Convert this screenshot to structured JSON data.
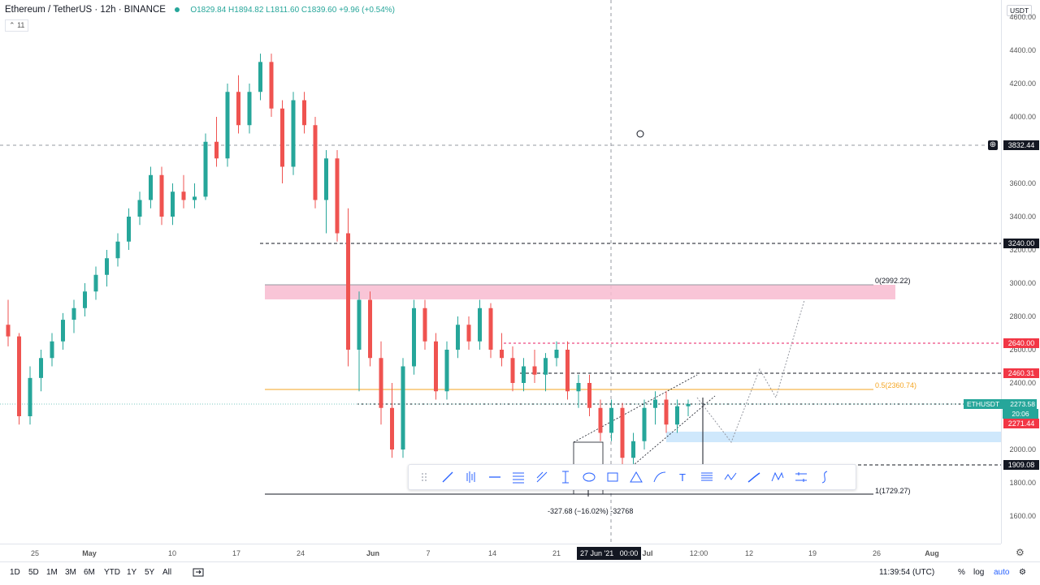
{
  "symbol_legend": {
    "title": "Ethereum / TetherUS · 12h · BINANCE",
    "ohlc": "O1829.84 H1894.82 L1811.60 C1839.60 +9.96 (+0.54%)"
  },
  "indicator_badge": "11",
  "currency_badge": "USDT",
  "price_ticks": [
    "4600.00",
    "4400.00",
    "4200.00",
    "4000.00",
    "3600.00",
    "3400.00",
    "3200.00",
    "3000.00",
    "2800.00",
    "2600.00",
    "2400.00",
    "2000.00",
    "1800.00",
    "1600.00"
  ],
  "price_tick_values": [
    4600,
    4400,
    4200,
    4000,
    3600,
    3400,
    3200,
    3000,
    2800,
    2600,
    2400,
    2000,
    1800,
    1600
  ],
  "price_labels": {
    "crosshair": "3832.44",
    "level_3240": "3240.00",
    "level_2640": "2640.00",
    "level_2460": "2460.31",
    "ethusdt_name": "ETHUSDT",
    "ethusdt_price": "2273.58",
    "ethusdt_timer": "20:06",
    "level_2271": "2271.44",
    "level_1909": "1909.08"
  },
  "time_ticks": [
    "25",
    "May",
    "10",
    "17",
    "24",
    "Jun",
    "7",
    "14",
    "21",
    "Jul",
    "12:00",
    "12",
    "19",
    "26",
    "Aug"
  ],
  "time_crosshair": [
    "27 Jun '21",
    "00:00"
  ],
  "fib_labels": {
    "top": "0(2992.22)",
    "mid": "0.5(2360.74)",
    "bottom": "1(1729.27)"
  },
  "measure_label": "-327.68 (−16.02%) -32768",
  "bottom_bar": {
    "ranges": [
      "1D",
      "5D",
      "1M",
      "3M",
      "6M",
      "YTD",
      "1Y",
      "5Y",
      "All"
    ],
    "clock": "11:39:54 (UTC)",
    "percent": "%",
    "log": "log",
    "auto": "auto"
  },
  "toolbar_tools": [
    "drag-handle-icon",
    "trend-line-icon",
    "bar-pattern-icon",
    "horizontal-line-icon",
    "channel-icon",
    "pitchfork-icon",
    "measure-icon",
    "ellipse-icon",
    "rectangle-icon",
    "triangle-icon",
    "curve-icon",
    "text-icon",
    "fib-icon",
    "path-icon",
    "brush-icon",
    "xabcd-icon",
    "ruler-icon",
    "s-curve-icon"
  ],
  "chart_data": {
    "type": "candlestick",
    "symbol": "ETHUSDT",
    "interval": "12h",
    "ylim": [
      1550,
      4700
    ],
    "candles": [
      [
        2750,
        2900,
        2620,
        2680
      ],
      [
        2680,
        2700,
        2150,
        2200
      ],
      [
        2200,
        2500,
        2150,
        2430
      ],
      [
        2430,
        2600,
        2350,
        2550
      ],
      [
        2550,
        2700,
        2500,
        2650
      ],
      [
        2650,
        2820,
        2600,
        2780
      ],
      [
        2780,
        2900,
        2700,
        2850
      ],
      [
        2850,
        3000,
        2800,
        2950
      ],
      [
        2950,
        3100,
        2900,
        3050
      ],
      [
        3050,
        3200,
        2980,
        3150
      ],
      [
        3150,
        3300,
        3100,
        3250
      ],
      [
        3250,
        3450,
        3200,
        3400
      ],
      [
        3400,
        3550,
        3350,
        3500
      ],
      [
        3500,
        3700,
        3450,
        3650
      ],
      [
        3650,
        3700,
        3350,
        3400
      ],
      [
        3400,
        3600,
        3350,
        3550
      ],
      [
        3550,
        3650,
        3450,
        3500
      ],
      [
        3500,
        3600,
        3450,
        3520
      ],
      [
        3520,
        3900,
        3500,
        3850
      ],
      [
        3850,
        4000,
        3700,
        3750
      ],
      [
        3750,
        4200,
        3700,
        4150
      ],
      [
        4150,
        4250,
        3900,
        3950
      ],
      [
        3950,
        4200,
        3900,
        4150
      ],
      [
        4150,
        4380,
        4100,
        4330
      ],
      [
        4330,
        4380,
        4000,
        4050
      ],
      [
        4050,
        4100,
        3600,
        3700
      ],
      [
        3700,
        4150,
        3650,
        4100
      ],
      [
        4100,
        4150,
        3900,
        3950
      ],
      [
        3950,
        4000,
        3450,
        3500
      ],
      [
        3500,
        3800,
        3300,
        3750
      ],
      [
        3750,
        3800,
        3250,
        3300
      ],
      [
        3300,
        3450,
        2500,
        2600
      ],
      [
        2600,
        2950,
        2350,
        2900
      ],
      [
        2900,
        2950,
        2500,
        2550
      ],
      [
        2550,
        2650,
        2150,
        2250
      ],
      [
        2250,
        2400,
        1950,
        2000
      ],
      [
        2000,
        2550,
        1950,
        2500
      ],
      [
        2500,
        2900,
        2450,
        2850
      ],
      [
        2850,
        2900,
        2600,
        2650
      ],
      [
        2650,
        2700,
        2300,
        2350
      ],
      [
        2350,
        2650,
        2300,
        2600
      ],
      [
        2600,
        2800,
        2550,
        2750
      ],
      [
        2750,
        2800,
        2600,
        2650
      ],
      [
        2650,
        2900,
        2600,
        2850
      ],
      [
        2850,
        2880,
        2550,
        2600
      ],
      [
        2600,
        2700,
        2500,
        2550
      ],
      [
        2550,
        2620,
        2350,
        2400
      ],
      [
        2400,
        2550,
        2350,
        2500
      ],
      [
        2500,
        2600,
        2400,
        2450
      ],
      [
        2450,
        2580,
        2350,
        2550
      ],
      [
        2550,
        2650,
        2500,
        2600
      ],
      [
        2600,
        2650,
        2300,
        2350
      ],
      [
        2350,
        2450,
        2250,
        2400
      ],
      [
        2400,
        2450,
        2200,
        2250
      ],
      [
        2250,
        2300,
        2050,
        2100
      ],
      [
        2100,
        2300,
        2050,
        2250
      ],
      [
        2250,
        2280,
        1900,
        1950
      ],
      [
        1950,
        2100,
        1900,
        2050
      ],
      [
        2050,
        2300,
        2000,
        2250
      ],
      [
        2250,
        2350,
        2150,
        2300
      ],
      [
        2300,
        2350,
        2100,
        2150
      ],
      [
        2150,
        2300,
        2100,
        2260
      ],
      [
        2260,
        2300,
        2200,
        2274
      ]
    ]
  }
}
